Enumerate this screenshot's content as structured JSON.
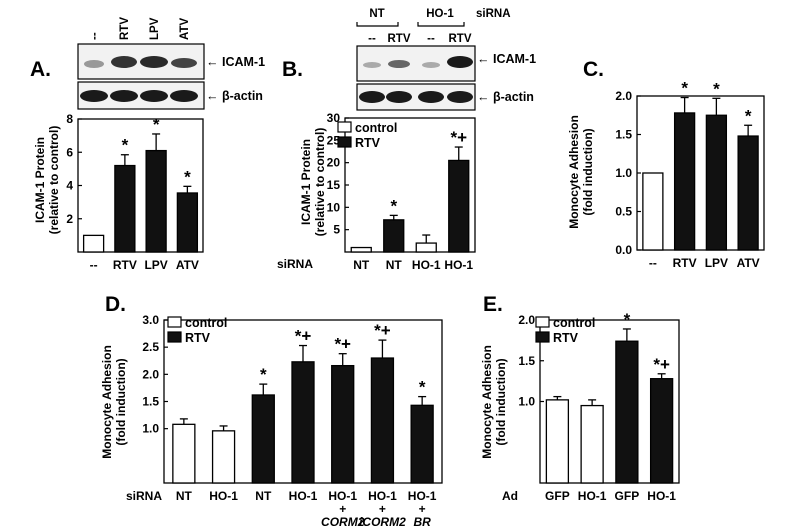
{
  "panels": {
    "A": {
      "label": "A.",
      "blot": {
        "lanes": [
          "--",
          "RTV",
          "LPV",
          "ATV"
        ],
        "bands": [
          "← ICAM-1",
          "← β-actin"
        ]
      },
      "ylabel_line1": "ICAM-1 Protein",
      "ylabel_line2": "(relative to control)"
    },
    "B": {
      "label": "B.",
      "blot": {
        "groups": [
          "NT",
          "HO-1"
        ],
        "group_suffix": "siRNA",
        "lanes": [
          "--",
          "RTV",
          "--",
          "RTV"
        ],
        "bands": [
          "← ICAM-1",
          "← β-actin"
        ]
      },
      "ylabel_line1": "ICAM-1 Protein",
      "ylabel_line2": "(relative to control)",
      "row_label": "siRNA"
    },
    "C": {
      "label": "C.",
      "ylabel_line1": "Monocyte Adhesion",
      "ylabel_line2": "(fold induction)"
    },
    "D": {
      "label": "D.",
      "ylabel_line1": "Monocyte Adhesion",
      "ylabel_line2": "(fold induction)",
      "row_label": "siRNA",
      "extra_row1": [
        "+",
        "+",
        "+"
      ],
      "extra_row2": [
        "CORM2",
        "iCORM2",
        "BR"
      ]
    },
    "E": {
      "label": "E.",
      "ylabel_line1": "Monocyte Adhesion",
      "ylabel_line2": "(fold induction)",
      "row_label": "Ad"
    }
  },
  "chart_data": [
    {
      "id": "A",
      "type": "bar",
      "title": "",
      "xlabel": "",
      "ylabel": "ICAM-1 Protein (relative to control)",
      "ylim": [
        0,
        8
      ],
      "yticks": [
        2,
        4,
        6,
        8
      ],
      "categories": [
        "--",
        "RTV",
        "LPV",
        "ATV"
      ],
      "values": [
        1.0,
        5.2,
        6.1,
        3.55
      ],
      "errors": [
        0,
        0.65,
        1.0,
        0.4
      ],
      "fill": [
        "white",
        "black",
        "black",
        "black"
      ],
      "annotations": [
        "",
        "*",
        "*",
        "*"
      ]
    },
    {
      "id": "B",
      "type": "bar",
      "title": "",
      "xlabel": "",
      "ylabel": "ICAM-1 Protein (relative to control)",
      "ylim": [
        0,
        30
      ],
      "yticks": [
        5,
        10,
        15,
        20,
        25,
        30
      ],
      "categories": [
        "NT",
        "NT",
        "HO-1",
        "HO-1"
      ],
      "values": [
        1.0,
        7.2,
        2.0,
        20.5
      ],
      "errors": [
        0,
        1.0,
        1.8,
        3.0
      ],
      "fill": [
        "white",
        "black",
        "white",
        "black"
      ],
      "annotations": [
        "",
        "*",
        "",
        "*+"
      ],
      "legend": [
        {
          "name": "control",
          "fill": "white"
        },
        {
          "name": "RTV",
          "fill": "black"
        }
      ]
    },
    {
      "id": "C",
      "type": "bar",
      "title": "",
      "xlabel": "",
      "ylabel": "Monocyte Adhesion (fold induction)",
      "ylim": [
        0,
        2.0
      ],
      "yticks": [
        0.0,
        0.5,
        1.0,
        1.5,
        2.0
      ],
      "categories": [
        "--",
        "RTV",
        "LPV",
        "ATV"
      ],
      "values": [
        1.0,
        1.78,
        1.75,
        1.48
      ],
      "errors": [
        0,
        0.2,
        0.22,
        0.14
      ],
      "fill": [
        "white",
        "black",
        "black",
        "black"
      ],
      "annotations": [
        "",
        "*",
        "*",
        "*"
      ]
    },
    {
      "id": "D",
      "type": "bar",
      "title": "",
      "xlabel": "",
      "ylabel": "Monocyte Adhesion (fold induction)",
      "ylim": [
        0,
        3.0
      ],
      "yticks": [
        1.0,
        1.5,
        2.0,
        2.5,
        3.0
      ],
      "categories": [
        "NT",
        "HO-1",
        "NT",
        "HO-1",
        "HO-1",
        "HO-1",
        "HO-1"
      ],
      "values": [
        1.08,
        0.96,
        1.62,
        2.23,
        2.16,
        2.3,
        1.43
      ],
      "errors": [
        0.1,
        0.09,
        0.2,
        0.3,
        0.22,
        0.33,
        0.16
      ],
      "fill": [
        "white",
        "white",
        "black",
        "black",
        "black",
        "black",
        "black"
      ],
      "annotations": [
        "",
        "",
        "*",
        "*+",
        "*+",
        "*+",
        "*"
      ],
      "legend": [
        {
          "name": "control",
          "fill": "white"
        },
        {
          "name": "RTV",
          "fill": "black"
        }
      ]
    },
    {
      "id": "E",
      "type": "bar",
      "title": "",
      "xlabel": "",
      "ylabel": "Monocyte Adhesion (fold induction)",
      "ylim": [
        0,
        2.0
      ],
      "yticks": [
        1.0,
        1.5,
        2.0
      ],
      "categories": [
        "GFP",
        "HO-1",
        "GFP",
        "HO-1"
      ],
      "values": [
        1.02,
        0.95,
        1.74,
        1.28
      ],
      "errors": [
        0.04,
        0.07,
        0.15,
        0.06
      ],
      "fill": [
        "white",
        "white",
        "black",
        "black"
      ],
      "annotations": [
        "",
        "",
        "*",
        "*+"
      ],
      "legend": [
        {
          "name": "control",
          "fill": "white"
        },
        {
          "name": "RTV",
          "fill": "black"
        }
      ]
    }
  ]
}
